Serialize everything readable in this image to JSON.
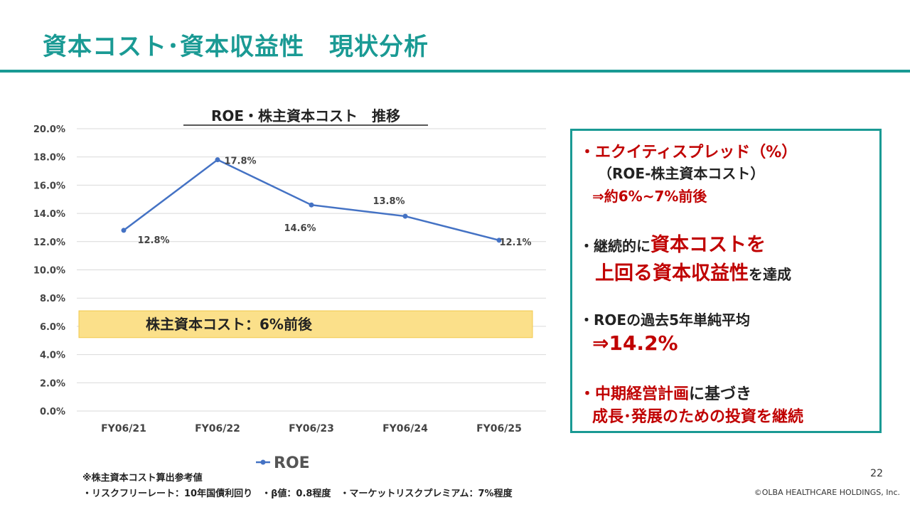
{
  "page": {
    "title": "資本コスト･資本収益性　現状分析",
    "page_number": "22",
    "copyright": "©OLBA HEALTHCARE HOLDINGS, Inc."
  },
  "chart_data": {
    "type": "line",
    "title": "ROE・株主資本コスト　推移",
    "categories": [
      "FY06/21",
      "FY06/22",
      "FY06/23",
      "FY06/24",
      "FY06/25"
    ],
    "series": [
      {
        "name": "ROE",
        "values": [
          12.8,
          17.8,
          14.6,
          13.8,
          12.1
        ],
        "color": "#4472c4"
      }
    ],
    "data_labels": [
      "12.8%",
      "17.8%",
      "14.6%",
      "13.8%",
      "12.1%"
    ],
    "ylim": [
      0,
      20
    ],
    "yticks": [
      "0.0%",
      "2.0%",
      "4.0%",
      "6.0%",
      "8.0%",
      "10.0%",
      "12.0%",
      "14.0%",
      "16.0%",
      "18.0%",
      "20.0%"
    ],
    "grid": true,
    "legend": "bottom",
    "band": {
      "label": "株主資本コスト：6%前後",
      "from": 5.2,
      "to": 7.1,
      "color": "#fbe08a"
    }
  },
  "panel": {
    "p1_l1": "・エクイティスプレッド（%）",
    "p1_l2": "（ROE-株主資本コスト）",
    "p1_l3": "⇒約6%~7%前後",
    "p2_pre": "・継続的に",
    "p2_red1": "資本コストを",
    "p2_red2": "上回る資本収益性",
    "p2_post": "を達成",
    "p3_l1": "・ROEの過去5年単純平均",
    "p3_l2": "⇒14.2%",
    "p4_red": "・中期経営計画",
    "p4_post": "に基づき",
    "p4_l2": "成長･発展のための投資を継続"
  },
  "notes": {
    "line1": "※株主資本コスト算出参考値",
    "line2": "・リスクフリーレート：10年国債利回り　・β値：0.8程度　・マーケットリスクプレミアム：7%程度"
  }
}
